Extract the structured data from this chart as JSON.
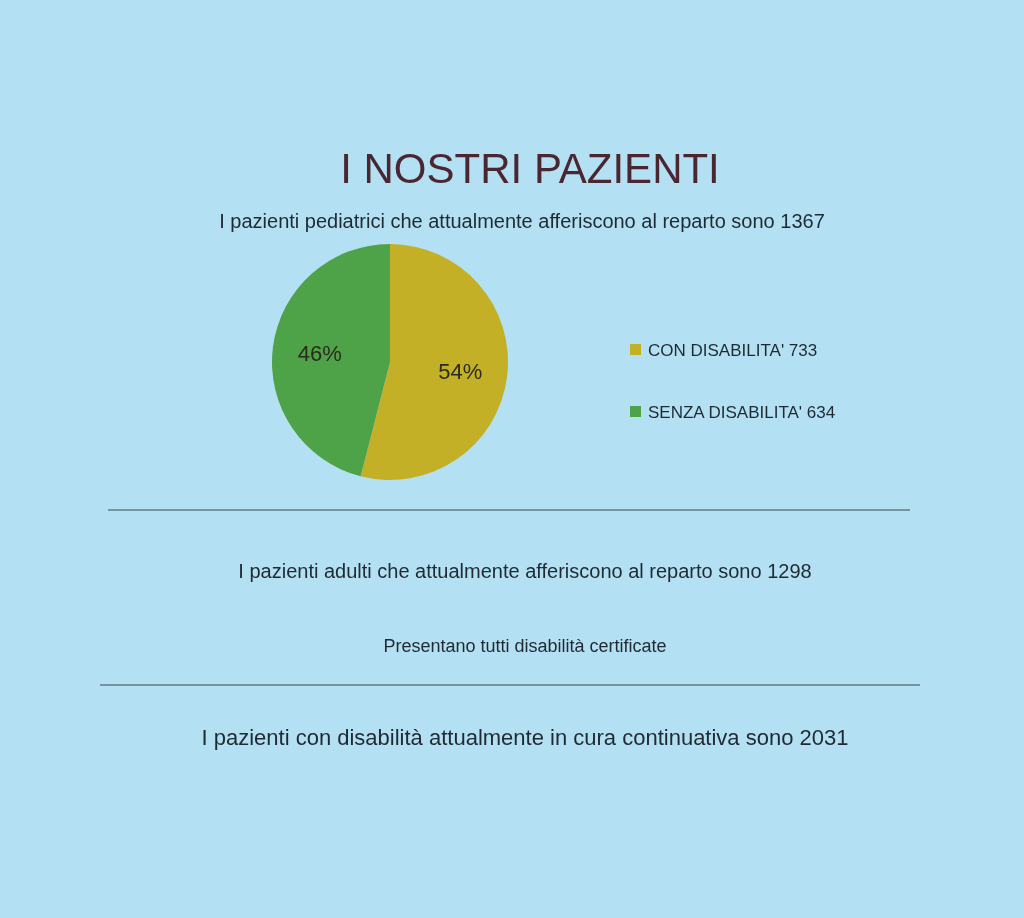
{
  "chart_data": {
    "type": "pie",
    "title": "I NOSTRI PAZIENTI",
    "subtitle": "I pazienti pediatrici che attualmente afferiscono al reparto sono 1367",
    "categories": [
      "CON DISABILITA' 733",
      "SENZA DISABILITA' 634"
    ],
    "values": [
      54,
      46
    ],
    "colors": [
      "#c4b027",
      "#4ea247"
    ],
    "value_labels": [
      "54%",
      "46%"
    ],
    "legend": "right",
    "annotations": [
      "I pazienti adulti che attualmente afferiscono al reparto sono 1298",
      "Presentano tutti disabilità certificate",
      "I pazienti con disabilità attualmente in cura continuativa sono 2031"
    ]
  }
}
